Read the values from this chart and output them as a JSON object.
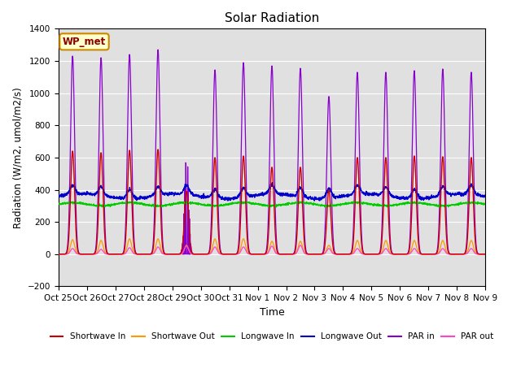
{
  "title": "Solar Radiation",
  "ylabel": "Radiation (W/m2, umol/m2/s)",
  "xlabel": "Time",
  "xlim": [
    0,
    15
  ],
  "ylim": [
    -200,
    1400
  ],
  "yticks": [
    -200,
    0,
    200,
    400,
    600,
    800,
    1000,
    1200,
    1400
  ],
  "xtick_labels": [
    "Oct 25",
    "Oct 26",
    "Oct 27",
    "Oct 28",
    "Oct 29",
    "Oct 30",
    "Oct 31",
    "Nov 1",
    "Nov 2",
    "Nov 3",
    "Nov 4",
    "Nov 5",
    "Nov 6",
    "Nov 7",
    "Nov 8",
    "Nov 9"
  ],
  "legend_labels": [
    "Shortwave In",
    "Shortwave Out",
    "Longwave In",
    "Longwave Out",
    "PAR in",
    "PAR out"
  ],
  "legend_colors": [
    "#cc0000",
    "#ff9900",
    "#00cc00",
    "#0000cc",
    "#8800cc",
    "#ff44cc"
  ],
  "bg_color": "#e0e0e0",
  "annotation_text": "WP_met",
  "annotation_bg": "#ffffcc",
  "annotation_border": "#cc8800",
  "n_days": 15,
  "pts_per_day": 144
}
